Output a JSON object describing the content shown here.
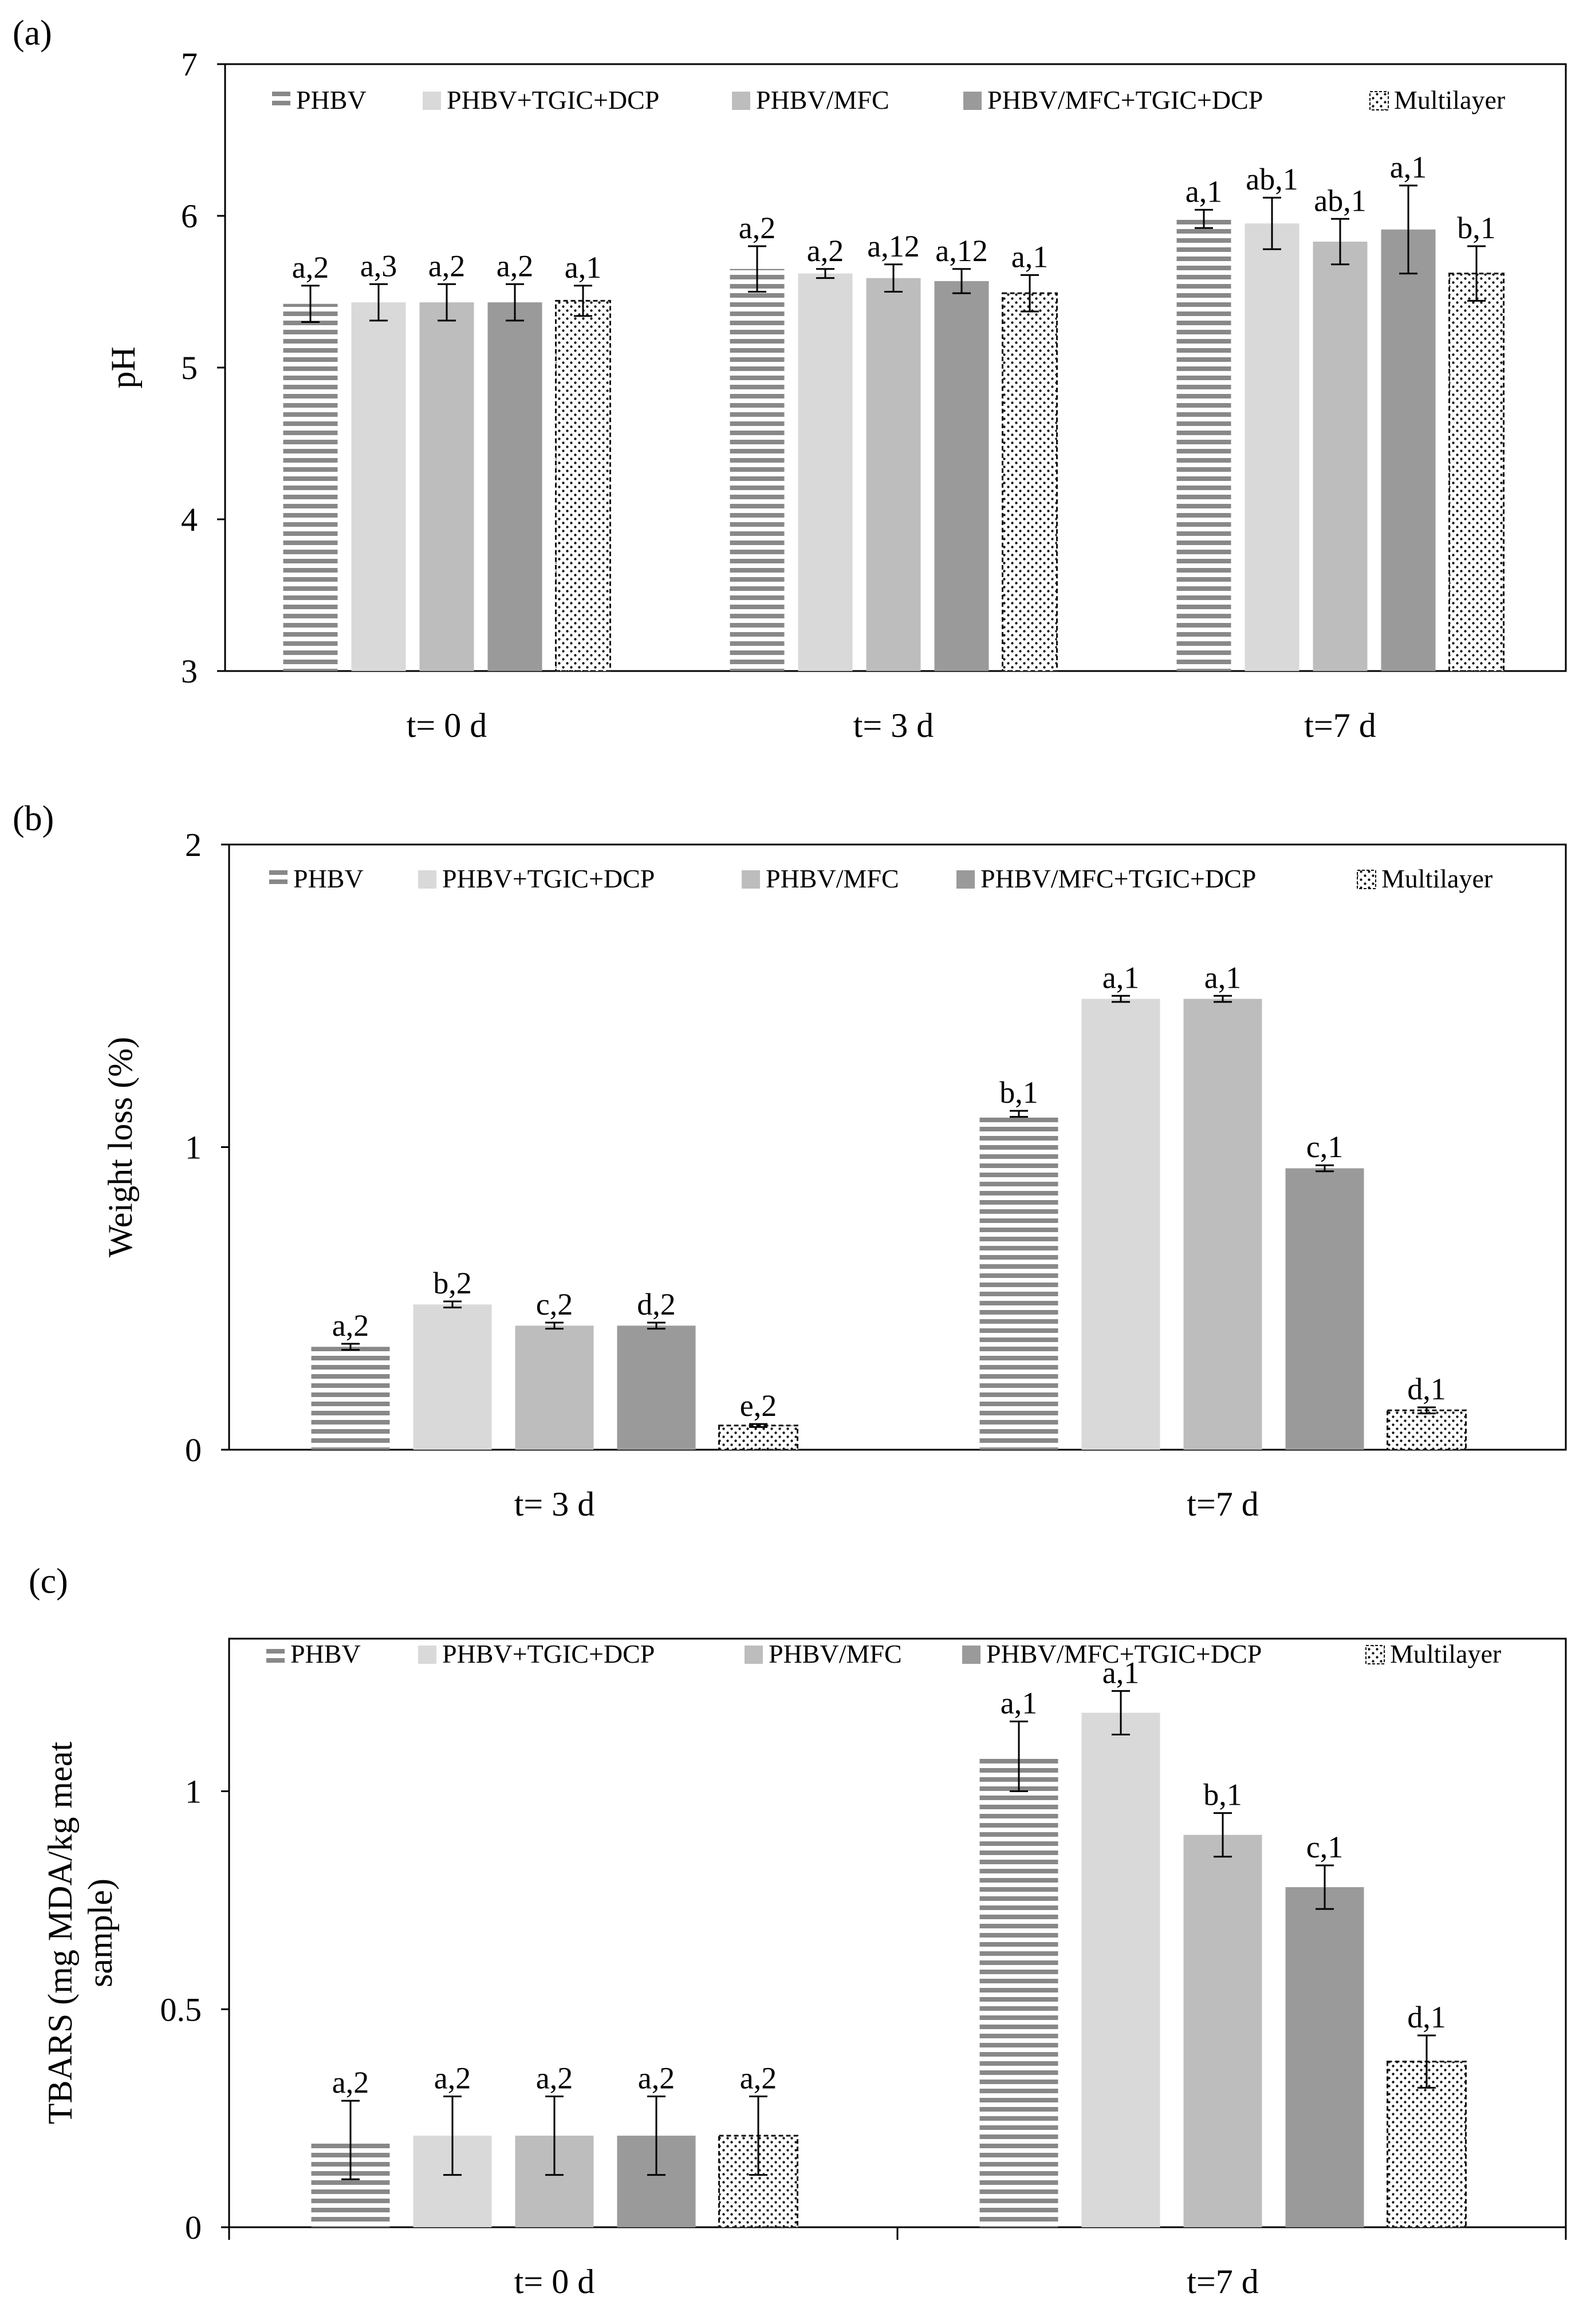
{
  "figure": {
    "panels": [
      {
        "id": "a",
        "label": "(a)",
        "chart_data": {
          "type": "bar",
          "title": "",
          "xlabel": "",
          "ylabel": "pH",
          "ylim": [
            3,
            7
          ],
          "yticks": [
            3,
            4,
            5,
            6,
            7
          ],
          "categories": [
            "t= 0 d",
            "t= 3 d",
            "t=7 d"
          ],
          "series": [
            {
              "name": "PHBV",
              "pattern": "hstripe",
              "values": [
                5.42,
                5.65,
                5.98
              ],
              "errors": [
                0.12,
                0.15,
                0.06
              ],
              "labels": [
                "a,2",
                "a,2",
                "a,1"
              ]
            },
            {
              "name": "PHBV+TGIC+DCP",
              "pattern": "light",
              "values": [
                5.43,
                5.62,
                5.95
              ],
              "errors": [
                0.12,
                0.03,
                0.17
              ],
              "labels": [
                "a,3",
                "a,2",
                "ab,1"
              ]
            },
            {
              "name": "PHBV/MFC",
              "pattern": "medium",
              "values": [
                5.43,
                5.59,
                5.83
              ],
              "errors": [
                0.12,
                0.09,
                0.15
              ],
              "labels": [
                "a,2",
                "a,12",
                "ab,1"
              ]
            },
            {
              "name": "PHBV/MFC+TGIC+DCP",
              "pattern": "dark",
              "values": [
                5.43,
                5.57,
                5.91
              ],
              "errors": [
                0.12,
                0.08,
                0.29
              ],
              "labels": [
                "a,2",
                "a,12",
                "a,1"
              ]
            },
            {
              "name": "Multilayer",
              "pattern": "dots",
              "values": [
                5.44,
                5.49,
                5.62
              ],
              "errors": [
                0.1,
                0.12,
                0.18
              ],
              "labels": [
                "a,1",
                "a,1",
                "b,1"
              ]
            }
          ],
          "legend_position": "top"
        }
      },
      {
        "id": "b",
        "label": "(b)",
        "chart_data": {
          "type": "bar",
          "title": "",
          "xlabel": "",
          "ylabel": "Weight loss (%)",
          "ylim": [
            0,
            2
          ],
          "yticks": [
            0,
            1,
            2
          ],
          "categories": [
            "t= 3 d",
            "t=7 d"
          ],
          "series": [
            {
              "name": "PHBV",
              "pattern": "hstripe",
              "values": [
                0.34,
                1.11
              ],
              "errors": [
                0.01,
                0.01
              ],
              "labels": [
                "a,2",
                "b,1"
              ]
            },
            {
              "name": "PHBV+TGIC+DCP",
              "pattern": "light",
              "values": [
                0.48,
                1.49
              ],
              "errors": [
                0.01,
                0.01
              ],
              "labels": [
                "b,2",
                "a,1"
              ]
            },
            {
              "name": "PHBV/MFC",
              "pattern": "medium",
              "values": [
                0.41,
                1.49
              ],
              "errors": [
                0.01,
                0.01
              ],
              "labels": [
                "c,2",
                "a,1"
              ]
            },
            {
              "name": "PHBV/MFC+TGIC+DCP",
              "pattern": "dark",
              "values": [
                0.41,
                0.93
              ],
              "errors": [
                0.01,
                0.01
              ],
              "labels": [
                "d,2",
                "c,1"
              ]
            },
            {
              "name": "Multilayer",
              "pattern": "dots",
              "values": [
                0.08,
                0.13
              ],
              "errors": [
                0.005,
                0.01
              ],
              "labels": [
                "e,2",
                "d,1"
              ]
            }
          ],
          "legend_position": "top"
        }
      },
      {
        "id": "c",
        "label": "(c)",
        "chart_data": {
          "type": "bar",
          "title": "",
          "xlabel": "",
          "ylabel_lines": [
            "TBARS (mg MDA/kg meat",
            "sample)"
          ],
          "ylim": [
            0,
            1.35
          ],
          "yticks": [
            0,
            0.5,
            1
          ],
          "categories": [
            "t= 0 d",
            "t=7 d"
          ],
          "series": [
            {
              "name": "PHBV",
              "pattern": "hstripe",
              "values": [
                0.2,
                1.08
              ],
              "errors": [
                0.09,
                0.08
              ],
              "labels": [
                "a,2",
                "a,1"
              ]
            },
            {
              "name": "PHBV+TGIC+DCP",
              "pattern": "light",
              "values": [
                0.21,
                1.18
              ],
              "errors": [
                0.09,
                0.05
              ],
              "labels": [
                "a,2",
                "a,1"
              ]
            },
            {
              "name": "PHBV/MFC",
              "pattern": "medium",
              "values": [
                0.21,
                0.9
              ],
              "errors": [
                0.09,
                0.05
              ],
              "labels": [
                "a,2",
                "b,1"
              ]
            },
            {
              "name": "PHBV/MFC+TGIC+DCP",
              "pattern": "dark",
              "values": [
                0.21,
                0.78
              ],
              "errors": [
                0.09,
                0.05
              ],
              "labels": [
                "a,2",
                "c,1"
              ]
            },
            {
              "name": "Multilayer",
              "pattern": "dots",
              "values": [
                0.21,
                0.38
              ],
              "errors": [
                0.09,
                0.06
              ],
              "labels": [
                "a,2",
                "d,1"
              ]
            }
          ],
          "legend_position": "top"
        }
      }
    ],
    "colors": {
      "hstripe": "#888888",
      "light": "#d9d9d9",
      "medium": "#bdbdbd",
      "dark": "#9a9a9a",
      "dots": "#111111",
      "axis": "#000000"
    }
  }
}
